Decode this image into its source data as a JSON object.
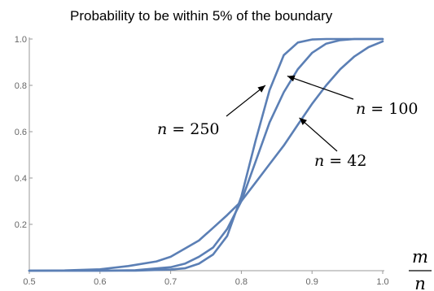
{
  "chart_data": {
    "type": "line",
    "title": "Probability to be within 5% of the boundary",
    "xlabel_numerator": "m",
    "xlabel_denominator": "n",
    "ylabel": "",
    "xlim": [
      0.5,
      1.0
    ],
    "ylim": [
      0.0,
      1.0
    ],
    "x_ticks": [
      "0.5",
      "0.6",
      "0.7",
      "0.8",
      "0.9",
      "1.0"
    ],
    "y_ticks": [
      "0.2",
      "0.4",
      "0.6",
      "0.8",
      "1.0"
    ],
    "grid": false,
    "legend": "none",
    "series": [
      {
        "x": [
          0.5,
          0.6,
          0.65,
          0.7,
          0.72,
          0.74,
          0.76,
          0.78,
          0.8,
          0.82,
          0.84,
          0.86,
          0.88,
          0.9,
          0.92,
          0.94,
          0.96,
          1.0
        ],
        "values": [
          0.0,
          0.0,
          0.0,
          0.005,
          0.01,
          0.03,
          0.07,
          0.15,
          0.32,
          0.56,
          0.78,
          0.93,
          0.985,
          0.998,
          1.0,
          1.0,
          1.0,
          1.0
        ]
      },
      {
        "x": [
          0.5,
          0.6,
          0.65,
          0.7,
          0.72,
          0.74,
          0.76,
          0.78,
          0.8,
          0.82,
          0.84,
          0.86,
          0.88,
          0.9,
          0.92,
          0.94,
          0.96,
          1.0
        ],
        "values": [
          0.0,
          0.0,
          0.002,
          0.015,
          0.03,
          0.06,
          0.1,
          0.18,
          0.3,
          0.47,
          0.64,
          0.77,
          0.87,
          0.94,
          0.98,
          0.995,
          1.0,
          1.0
        ]
      },
      {
        "x": [
          0.5,
          0.55,
          0.6,
          0.64,
          0.68,
          0.7,
          0.72,
          0.74,
          0.76,
          0.78,
          0.8,
          0.82,
          0.84,
          0.86,
          0.88,
          0.9,
          0.92,
          0.94,
          0.96,
          0.98,
          1.0
        ],
        "values": [
          0.0,
          0.001,
          0.006,
          0.02,
          0.04,
          0.06,
          0.095,
          0.13,
          0.185,
          0.24,
          0.3,
          0.38,
          0.46,
          0.54,
          0.63,
          0.72,
          0.8,
          0.87,
          0.925,
          0.965,
          0.99
        ]
      }
    ],
    "annotations": [
      {
        "var": "n",
        "eq": "= 250",
        "point": [
          0.834,
          0.8
        ]
      },
      {
        "var": "n",
        "eq": "= 100",
        "point": [
          0.865,
          0.84
        ]
      },
      {
        "var": "n",
        "eq": "= 42",
        "point": [
          0.882,
          0.66
        ]
      }
    ],
    "colors": {
      "curve": "#5b7fb5",
      "axis": "#9a9a9a"
    }
  }
}
